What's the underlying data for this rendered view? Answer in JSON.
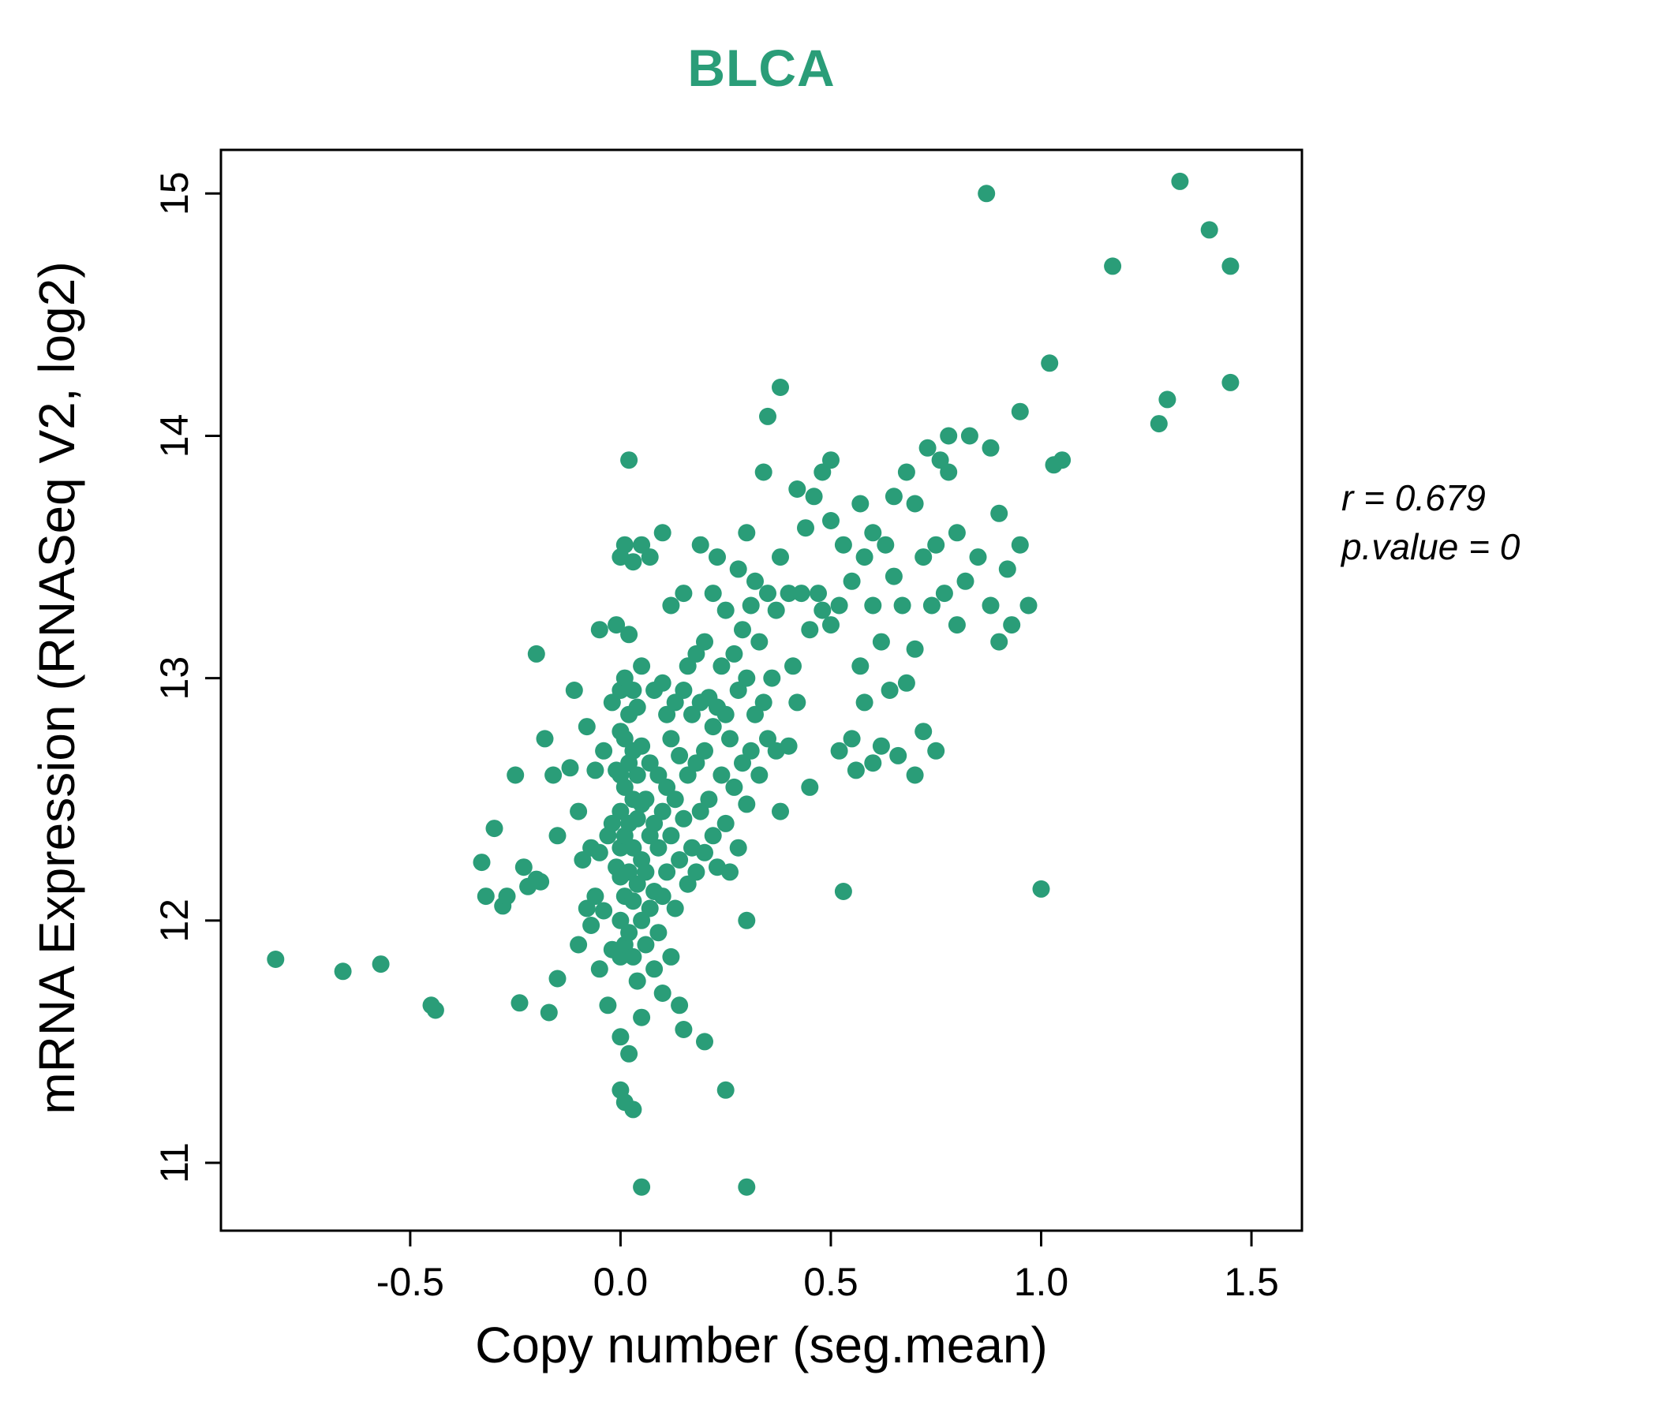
{
  "title": "BLCA",
  "annotation": {
    "line1": "r = 0.679",
    "line2": "p.value = 0"
  },
  "accent_color": "#2a9d78",
  "chart_data": {
    "type": "scatter",
    "title": "BLCA",
    "xlabel": "Copy number (seg.mean)",
    "ylabel": "mRNA Expression (RNASeq V2, log2)",
    "xlim": [
      -0.95,
      1.62
    ],
    "ylim": [
      10.72,
      15.18
    ],
    "x_ticks": [
      -0.5,
      0.0,
      0.5,
      1.0,
      1.5
    ],
    "x_tick_labels": [
      "-0.5",
      "0.0",
      "0.5",
      "1.0",
      "1.5"
    ],
    "y_ticks": [
      11,
      12,
      13,
      14,
      15
    ],
    "y_tick_labels": [
      "11",
      "12",
      "13",
      "14",
      "15"
    ],
    "grid": false,
    "legend": "none",
    "point_color": "#2a9d78",
    "annotations": [
      "r = 0.679",
      "p.value = 0"
    ],
    "points": [
      [
        -0.82,
        11.84
      ],
      [
        -0.66,
        11.79
      ],
      [
        -0.57,
        11.82
      ],
      [
        -0.45,
        11.65
      ],
      [
        -0.44,
        11.63
      ],
      [
        -0.33,
        12.24
      ],
      [
        -0.32,
        12.1
      ],
      [
        -0.3,
        12.38
      ],
      [
        -0.28,
        12.06
      ],
      [
        -0.27,
        12.1
      ],
      [
        -0.25,
        12.6
      ],
      [
        -0.24,
        11.66
      ],
      [
        -0.23,
        12.22
      ],
      [
        -0.22,
        12.14
      ],
      [
        -0.2,
        12.17
      ],
      [
        -0.2,
        13.1
      ],
      [
        -0.19,
        12.16
      ],
      [
        -0.18,
        12.75
      ],
      [
        -0.17,
        11.62
      ],
      [
        -0.16,
        12.6
      ],
      [
        -0.15,
        11.76
      ],
      [
        -0.15,
        12.35
      ],
      [
        -0.12,
        12.63
      ],
      [
        -0.11,
        12.95
      ],
      [
        -0.1,
        12.45
      ],
      [
        -0.1,
        11.9
      ],
      [
        -0.09,
        12.25
      ],
      [
        -0.08,
        12.05
      ],
      [
        -0.08,
        12.8
      ],
      [
        -0.07,
        12.3
      ],
      [
        -0.07,
        11.98
      ],
      [
        -0.06,
        12.1
      ],
      [
        -0.06,
        12.62
      ],
      [
        -0.05,
        11.8
      ],
      [
        -0.05,
        12.28
      ],
      [
        -0.05,
        13.2
      ],
      [
        -0.04,
        12.04
      ],
      [
        -0.04,
        12.7
      ],
      [
        -0.03,
        12.35
      ],
      [
        -0.03,
        11.65
      ],
      [
        -0.02,
        12.9
      ],
      [
        -0.02,
        12.4
      ],
      [
        -0.02,
        11.88
      ],
      [
        -0.01,
        12.22
      ],
      [
        -0.01,
        12.62
      ],
      [
        -0.01,
        13.22
      ],
      [
        0,
        11.3
      ],
      [
        0,
        11.52
      ],
      [
        0,
        11.85
      ],
      [
        0,
        12.0
      ],
      [
        0,
        12.18
      ],
      [
        0,
        12.3
      ],
      [
        0,
        12.45
      ],
      [
        0,
        12.6
      ],
      [
        0,
        12.78
      ],
      [
        0,
        12.95
      ],
      [
        0,
        13.5
      ],
      [
        0.01,
        11.25
      ],
      [
        0.01,
        11.9
      ],
      [
        0.01,
        12.1
      ],
      [
        0.01,
        12.35
      ],
      [
        0.01,
        12.55
      ],
      [
        0.01,
        12.75
      ],
      [
        0.01,
        13.0
      ],
      [
        0.01,
        13.55
      ],
      [
        0.02,
        11.45
      ],
      [
        0.02,
        11.95
      ],
      [
        0.02,
        12.2
      ],
      [
        0.02,
        12.4
      ],
      [
        0.02,
        12.65
      ],
      [
        0.02,
        12.85
      ],
      [
        0.02,
        13.18
      ],
      [
        0.02,
        13.9
      ],
      [
        0.03,
        11.22
      ],
      [
        0.03,
        11.85
      ],
      [
        0.03,
        12.08
      ],
      [
        0.03,
        12.3
      ],
      [
        0.03,
        12.5
      ],
      [
        0.03,
        12.7
      ],
      [
        0.03,
        12.95
      ],
      [
        0.03,
        13.48
      ],
      [
        0.04,
        11.75
      ],
      [
        0.04,
        12.15
      ],
      [
        0.04,
        12.42
      ],
      [
        0.04,
        12.6
      ],
      [
        0.04,
        12.88
      ],
      [
        0.05,
        10.9
      ],
      [
        0.05,
        11.6
      ],
      [
        0.05,
        12.0
      ],
      [
        0.05,
        12.25
      ],
      [
        0.05,
        12.48
      ],
      [
        0.05,
        12.72
      ],
      [
        0.05,
        13.05
      ],
      [
        0.05,
        13.55
      ],
      [
        0.06,
        11.9
      ],
      [
        0.06,
        12.2
      ],
      [
        0.06,
        12.5
      ],
      [
        0.07,
        12.05
      ],
      [
        0.07,
        12.35
      ],
      [
        0.07,
        12.65
      ],
      [
        0.07,
        13.5
      ],
      [
        0.08,
        11.8
      ],
      [
        0.08,
        12.12
      ],
      [
        0.08,
        12.4
      ],
      [
        0.08,
        12.95
      ],
      [
        0.09,
        11.95
      ],
      [
        0.09,
        12.3
      ],
      [
        0.09,
        12.6
      ],
      [
        0.1,
        11.7
      ],
      [
        0.1,
        12.1
      ],
      [
        0.1,
        12.45
      ],
      [
        0.1,
        12.98
      ],
      [
        0.1,
        13.6
      ],
      [
        0.11,
        12.2
      ],
      [
        0.11,
        12.55
      ],
      [
        0.11,
        12.85
      ],
      [
        0.12,
        11.85
      ],
      [
        0.12,
        12.35
      ],
      [
        0.12,
        12.75
      ],
      [
        0.12,
        13.3
      ],
      [
        0.13,
        12.05
      ],
      [
        0.13,
        12.5
      ],
      [
        0.13,
        12.9
      ],
      [
        0.14,
        11.65
      ],
      [
        0.14,
        12.25
      ],
      [
        0.14,
        12.68
      ],
      [
        0.15,
        11.55
      ],
      [
        0.15,
        12.42
      ],
      [
        0.15,
        12.95
      ],
      [
        0.15,
        13.35
      ],
      [
        0.16,
        12.15
      ],
      [
        0.16,
        12.6
      ],
      [
        0.16,
        13.05
      ],
      [
        0.17,
        12.3
      ],
      [
        0.17,
        12.85
      ],
      [
        0.18,
        12.2
      ],
      [
        0.18,
        12.65
      ],
      [
        0.18,
        13.1
      ],
      [
        0.19,
        12.45
      ],
      [
        0.19,
        12.9
      ],
      [
        0.19,
        13.55
      ],
      [
        0.2,
        11.5
      ],
      [
        0.2,
        12.28
      ],
      [
        0.2,
        12.7
      ],
      [
        0.2,
        13.15
      ],
      [
        0.21,
        12.5
      ],
      [
        0.21,
        12.92
      ],
      [
        0.22,
        12.35
      ],
      [
        0.22,
        12.8
      ],
      [
        0.22,
        13.35
      ],
      [
        0.23,
        12.22
      ],
      [
        0.23,
        12.88
      ],
      [
        0.23,
        13.5
      ],
      [
        0.24,
        12.6
      ],
      [
        0.24,
        13.05
      ],
      [
        0.25,
        11.3
      ],
      [
        0.25,
        12.4
      ],
      [
        0.25,
        12.85
      ],
      [
        0.25,
        13.28
      ],
      [
        0.26,
        12.2
      ],
      [
        0.26,
        12.75
      ],
      [
        0.27,
        12.55
      ],
      [
        0.27,
        13.1
      ],
      [
        0.28,
        12.3
      ],
      [
        0.28,
        12.95
      ],
      [
        0.28,
        13.45
      ],
      [
        0.29,
        12.65
      ],
      [
        0.29,
        13.2
      ],
      [
        0.3,
        10.9
      ],
      [
        0.3,
        12.0
      ],
      [
        0.3,
        12.48
      ],
      [
        0.3,
        13.0
      ],
      [
        0.3,
        13.6
      ],
      [
        0.31,
        12.7
      ],
      [
        0.31,
        13.3
      ],
      [
        0.32,
        12.85
      ],
      [
        0.32,
        13.4
      ],
      [
        0.33,
        12.6
      ],
      [
        0.33,
        13.15
      ],
      [
        0.34,
        12.9
      ],
      [
        0.34,
        13.85
      ],
      [
        0.35,
        12.75
      ],
      [
        0.35,
        13.35
      ],
      [
        0.35,
        14.08
      ],
      [
        0.36,
        13.0
      ],
      [
        0.37,
        12.7
      ],
      [
        0.37,
        13.28
      ],
      [
        0.38,
        12.45
      ],
      [
        0.38,
        13.5
      ],
      [
        0.38,
        14.2
      ],
      [
        0.4,
        12.72
      ],
      [
        0.4,
        13.35
      ],
      [
        0.41,
        13.05
      ],
      [
        0.42,
        12.9
      ],
      [
        0.42,
        13.78
      ],
      [
        0.43,
        13.35
      ],
      [
        0.44,
        13.62
      ],
      [
        0.45,
        12.55
      ],
      [
        0.45,
        13.2
      ],
      [
        0.46,
        13.75
      ],
      [
        0.47,
        13.35
      ],
      [
        0.48,
        13.85
      ],
      [
        0.48,
        13.28
      ],
      [
        0.5,
        13.22
      ],
      [
        0.5,
        13.65
      ],
      [
        0.5,
        13.9
      ],
      [
        0.52,
        12.7
      ],
      [
        0.52,
        13.3
      ],
      [
        0.53,
        12.12
      ],
      [
        0.53,
        13.55
      ],
      [
        0.55,
        12.75
      ],
      [
        0.55,
        13.4
      ],
      [
        0.56,
        12.62
      ],
      [
        0.57,
        13.05
      ],
      [
        0.57,
        13.72
      ],
      [
        0.58,
        12.9
      ],
      [
        0.58,
        13.5
      ],
      [
        0.6,
        12.65
      ],
      [
        0.6,
        13.3
      ],
      [
        0.6,
        13.6
      ],
      [
        0.62,
        12.72
      ],
      [
        0.62,
        13.15
      ],
      [
        0.63,
        13.55
      ],
      [
        0.64,
        12.95
      ],
      [
        0.65,
        13.42
      ],
      [
        0.65,
        13.75
      ],
      [
        0.66,
        12.68
      ],
      [
        0.67,
        13.3
      ],
      [
        0.68,
        12.98
      ],
      [
        0.68,
        13.85
      ],
      [
        0.7,
        12.6
      ],
      [
        0.7,
        13.12
      ],
      [
        0.7,
        13.72
      ],
      [
        0.72,
        12.78
      ],
      [
        0.72,
        13.5
      ],
      [
        0.73,
        13.95
      ],
      [
        0.74,
        13.3
      ],
      [
        0.75,
        12.7
      ],
      [
        0.75,
        13.55
      ],
      [
        0.76,
        13.9
      ],
      [
        0.77,
        13.35
      ],
      [
        0.78,
        13.85
      ],
      [
        0.78,
        14.0
      ],
      [
        0.8,
        13.22
      ],
      [
        0.8,
        13.6
      ],
      [
        0.82,
        13.4
      ],
      [
        0.83,
        14.0
      ],
      [
        0.85,
        13.5
      ],
      [
        0.87,
        15.0
      ],
      [
        0.88,
        13.3
      ],
      [
        0.88,
        13.95
      ],
      [
        0.9,
        13.68
      ],
      [
        0.9,
        13.15
      ],
      [
        0.92,
        13.45
      ],
      [
        0.93,
        13.22
      ],
      [
        0.95,
        13.55
      ],
      [
        0.95,
        14.1
      ],
      [
        0.97,
        13.3
      ],
      [
        1.0,
        12.13
      ],
      [
        1.02,
        14.3
      ],
      [
        1.03,
        13.88
      ],
      [
        1.05,
        13.9
      ],
      [
        1.17,
        14.7
      ],
      [
        1.28,
        14.05
      ],
      [
        1.3,
        14.15
      ],
      [
        1.33,
        15.05
      ],
      [
        1.4,
        14.85
      ],
      [
        1.45,
        14.7
      ],
      [
        1.45,
        14.22
      ]
    ]
  }
}
